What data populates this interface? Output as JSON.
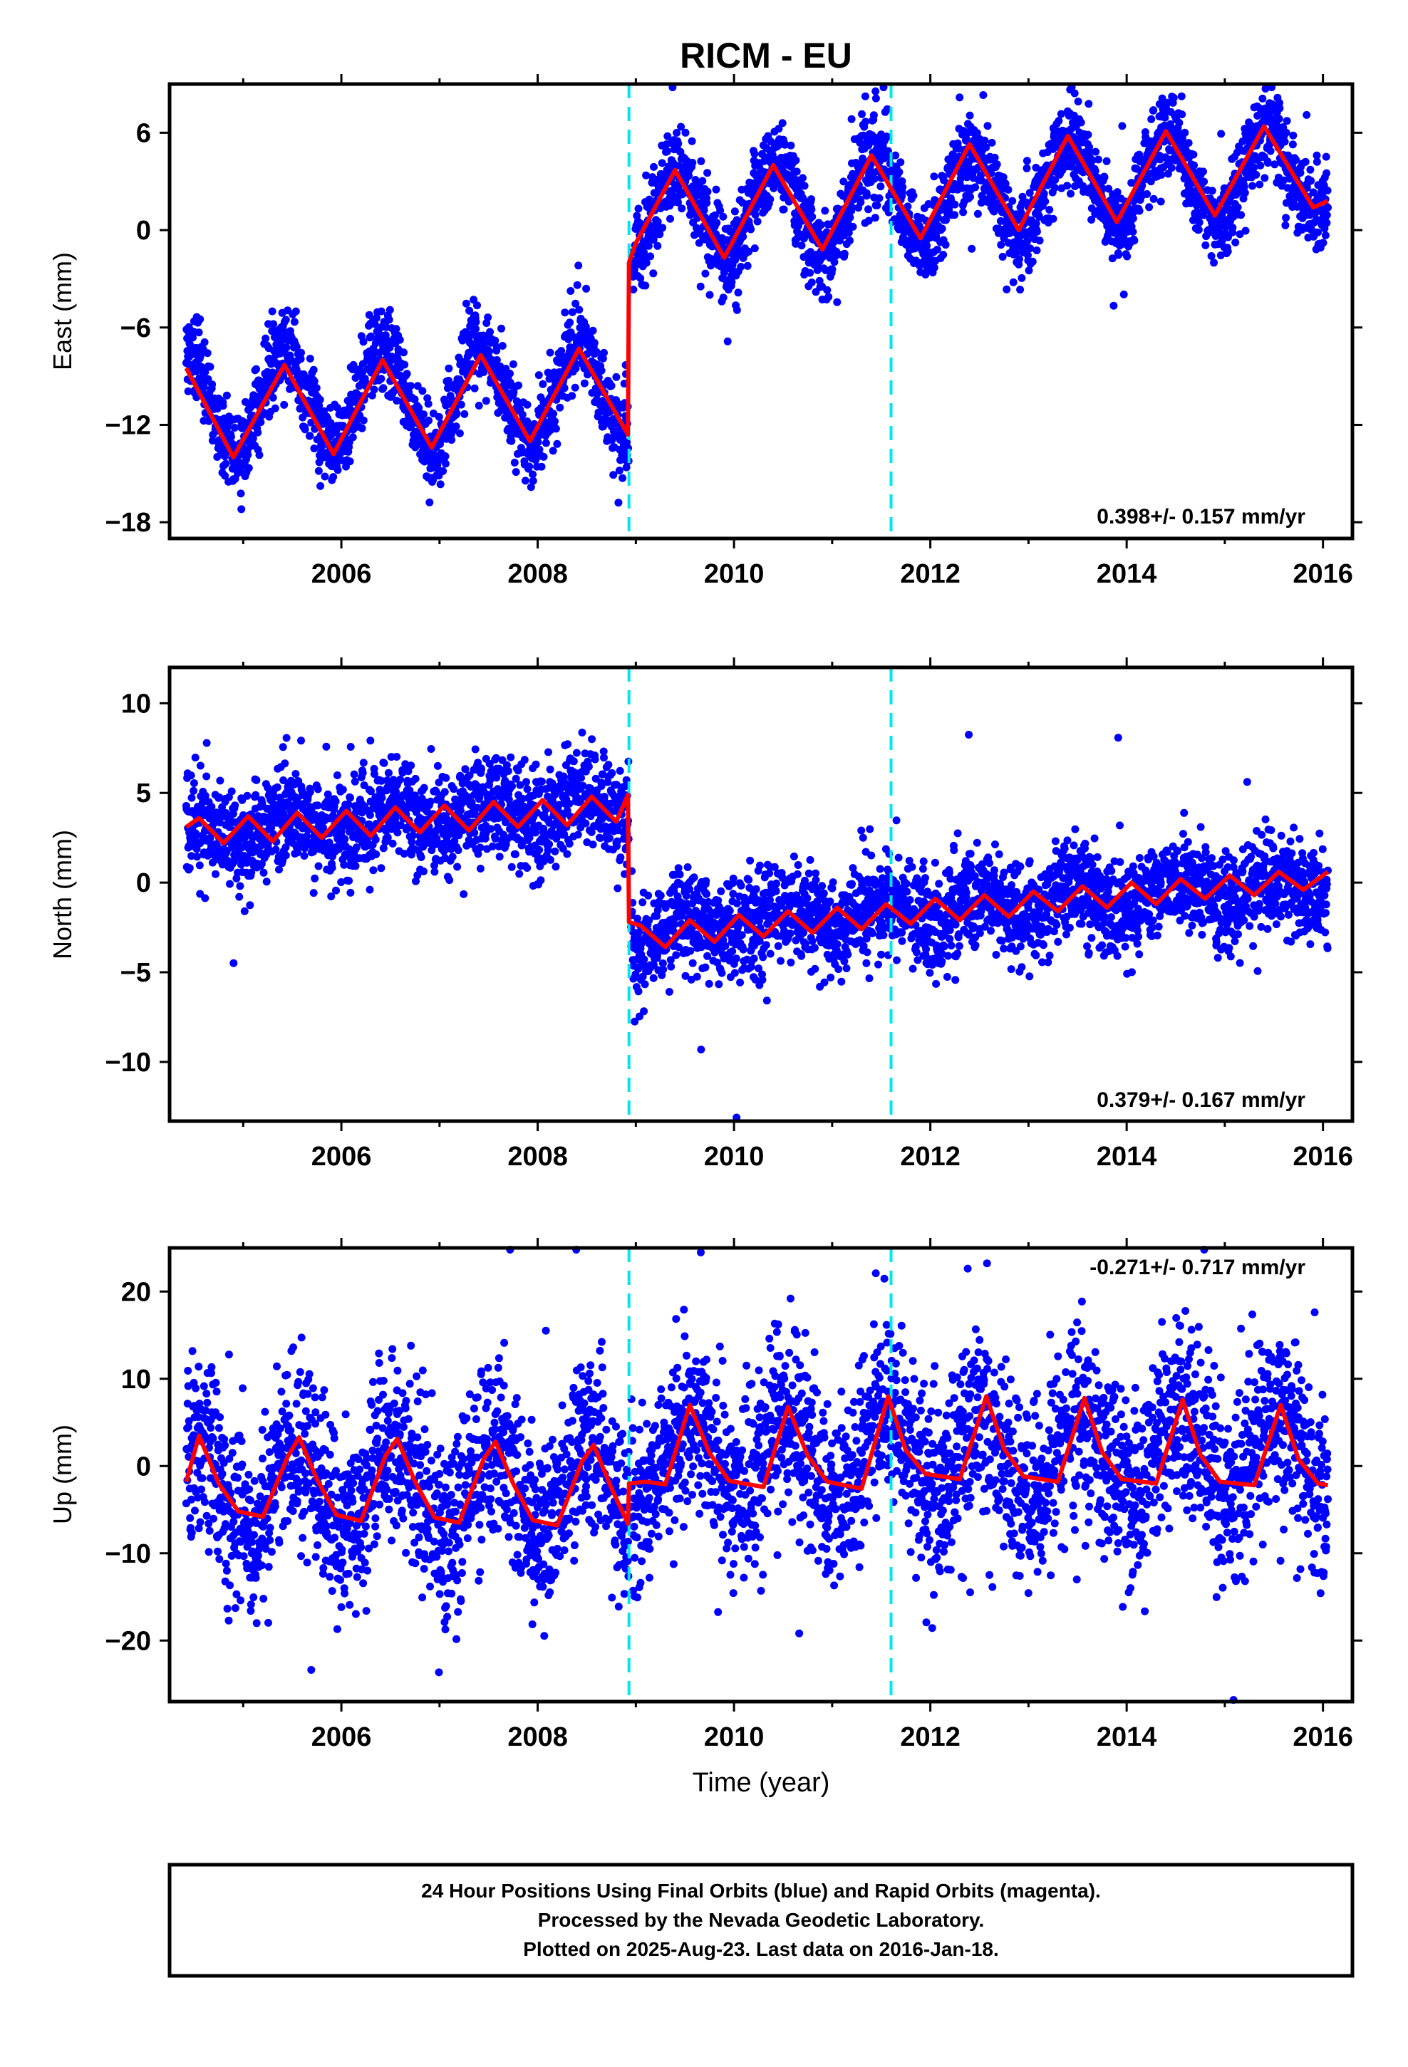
{
  "colors": {
    "points": "#0000ff",
    "model": "#ff0000",
    "offset_line": "#00e5ee",
    "frame": "#000000",
    "background": "#ffffff"
  },
  "chart_data": [
    {
      "type": "scatter",
      "title": "RICM - EU",
      "xlabel": "",
      "ylabel": "East (mm)",
      "xlim": [
        2004.25,
        2016.3
      ],
      "ylim": [
        -19,
        9
      ],
      "x_ticks": [
        2006,
        2008,
        2010,
        2012,
        2014,
        2016
      ],
      "x_tick_labels": [
        "2006",
        "2008",
        "2010",
        "2012",
        "2014",
        "2016"
      ],
      "y_ticks": [
        -18,
        -12,
        -6,
        0,
        6
      ],
      "y_tick_labels": [
        "−18",
        "−12",
        "−6",
        "0",
        "6"
      ],
      "offset_epochs": [
        2008.93,
        2011.6
      ],
      "rate_text": "0.398+/- 0.157 mm/yr",
      "rate_text_position": "bottom-right",
      "series": [
        {
          "role": "daily positions (points)",
          "segments": [
            {
              "x_start": 2004.42,
              "x_end": 2008.93,
              "level_start": -10.6,
              "level_end": -10.0,
              "annual_amplitude": 3.0,
              "scatter": 1.3
            },
            {
              "x_start": 2008.95,
              "x_end": 2016.05,
              "level_start": 0.6,
              "level_end": 3.8,
              "annual_amplitude": 2.8,
              "scatter": 1.3
            }
          ],
          "annual_peak_fraction": 0.42
        },
        {
          "role": "model fit (line)",
          "x": [
            2004.42,
            2004.9,
            2005.42,
            2005.92,
            2006.42,
            2006.92,
            2007.42,
            2007.92,
            2008.42,
            2008.92,
            2008.93,
            2009.0,
            2009.4,
            2009.9,
            2010.4,
            2010.9,
            2011.4,
            2011.9,
            2012.4,
            2012.9,
            2013.4,
            2013.9,
            2014.4,
            2014.9,
            2015.4,
            2015.9,
            2016.05
          ],
          "values": [
            -8.5,
            -14.0,
            -8.3,
            -13.8,
            -8.0,
            -13.4,
            -7.7,
            -13.0,
            -7.3,
            -12.6,
            -2.0,
            -0.8,
            3.7,
            -1.7,
            4.0,
            -1.2,
            4.6,
            -0.5,
            5.3,
            0.0,
            5.8,
            0.5,
            6.1,
            0.9,
            6.4,
            1.4,
            1.8
          ]
        }
      ]
    },
    {
      "type": "scatter",
      "title": "",
      "xlabel": "",
      "ylabel": "North (mm)",
      "xlim": [
        2004.25,
        2016.3
      ],
      "ylim": [
        -13.3,
        12
      ],
      "x_ticks": [
        2006,
        2008,
        2010,
        2012,
        2014,
        2016
      ],
      "x_tick_labels": [
        "2006",
        "2008",
        "2010",
        "2012",
        "2014",
        "2016"
      ],
      "y_ticks": [
        -10,
        -5,
        0,
        5,
        10
      ],
      "y_tick_labels": [
        "−10",
        "−5",
        "0",
        "5",
        "10"
      ],
      "offset_epochs": [
        2008.93,
        2011.6
      ],
      "rate_text": "0.379+/- 0.167 mm/yr",
      "rate_text_position": "bottom-right",
      "series": [
        {
          "role": "daily positions (points)",
          "segments": [
            {
              "x_start": 2004.42,
              "x_end": 2008.93,
              "level_start": 2.8,
              "level_end": 4.3,
              "annual_amplitude": 0.7,
              "scatter": 1.4
            },
            {
              "x_start": 2008.95,
              "x_end": 2016.05,
              "level_start": -2.7,
              "level_end": 0.0,
              "annual_amplitude": 0.7,
              "scatter": 1.4
            }
          ],
          "annual_peak_fraction": 0.5
        },
        {
          "role": "model fit (line)",
          "x": [
            2004.42,
            2004.55,
            2004.8,
            2005.05,
            2005.3,
            2005.55,
            2005.8,
            2006.05,
            2006.3,
            2006.55,
            2006.8,
            2007.05,
            2007.3,
            2007.55,
            2007.8,
            2008.05,
            2008.3,
            2008.55,
            2008.8,
            2008.92,
            2008.93,
            2009.05,
            2009.3,
            2009.55,
            2009.8,
            2010.05,
            2010.3,
            2010.55,
            2010.8,
            2011.05,
            2011.3,
            2011.55,
            2011.8,
            2012.05,
            2012.3,
            2012.55,
            2012.8,
            2013.05,
            2013.3,
            2013.55,
            2013.8,
            2014.05,
            2014.3,
            2014.55,
            2014.8,
            2015.05,
            2015.3,
            2015.55,
            2015.8,
            2016.05
          ],
          "values": [
            3.1,
            3.6,
            2.2,
            3.7,
            2.3,
            3.9,
            2.5,
            4.0,
            2.6,
            4.2,
            2.8,
            4.3,
            2.9,
            4.5,
            3.1,
            4.6,
            3.2,
            4.8,
            3.4,
            4.9,
            -2.2,
            -2.4,
            -3.6,
            -2.1,
            -3.3,
            -1.8,
            -3.0,
            -1.6,
            -2.8,
            -1.4,
            -2.6,
            -1.2,
            -2.3,
            -0.9,
            -2.1,
            -0.7,
            -1.9,
            -0.5,
            -1.6,
            -0.2,
            -1.4,
            0.0,
            -1.2,
            0.2,
            -0.9,
            0.4,
            -0.7,
            0.6,
            -0.4,
            0.6
          ]
        }
      ]
    },
    {
      "type": "scatter",
      "title": "",
      "xlabel": "Time (year)",
      "ylabel": "Up (mm)",
      "xlim": [
        2004.25,
        2016.3
      ],
      "ylim": [
        -27,
        25
      ],
      "x_ticks": [
        2006,
        2008,
        2010,
        2012,
        2014,
        2016
      ],
      "x_tick_labels": [
        "2006",
        "2008",
        "2010",
        "2012",
        "2014",
        "2016"
      ],
      "y_ticks": [
        -20,
        -10,
        0,
        10,
        20
      ],
      "y_tick_labels": [
        "−20",
        "−10",
        "0",
        "10",
        "20"
      ],
      "offset_epochs": [
        2008.93,
        2011.6
      ],
      "rate_text": "-0.271+/- 0.717 mm/yr",
      "rate_text_position": "top-right",
      "series": [
        {
          "role": "daily positions (points)",
          "segments": [
            {
              "x_start": 2004.42,
              "x_end": 2008.93,
              "level_start": -2.0,
              "level_end": -2.5,
              "annual_amplitude": 5.0,
              "scatter": 5.2
            },
            {
              "x_start": 2008.95,
              "x_end": 2016.05,
              "level_start": 1.0,
              "level_end": 1.5,
              "annual_amplitude": 4.5,
              "scatter": 5.2
            }
          ],
          "annual_peak_fraction": 0.55
        },
        {
          "role": "model fit (line)",
          "x": [
            2004.42,
            2004.55,
            2004.75,
            2004.95,
            2005.2,
            2005.45,
            2005.57,
            2005.75,
            2005.95,
            2006.2,
            2006.45,
            2006.57,
            2006.75,
            2006.95,
            2007.2,
            2007.45,
            2007.57,
            2007.75,
            2007.95,
            2008.2,
            2008.45,
            2008.57,
            2008.75,
            2008.92,
            2008.93,
            2009.1,
            2009.3,
            2009.55,
            2009.75,
            2009.95,
            2010.3,
            2010.55,
            2010.75,
            2010.95,
            2011.3,
            2011.57,
            2011.75,
            2011.95,
            2012.3,
            2012.57,
            2012.75,
            2012.95,
            2013.3,
            2013.57,
            2013.75,
            2013.95,
            2014.3,
            2014.57,
            2014.75,
            2014.95,
            2015.3,
            2015.57,
            2015.75,
            2015.95,
            2016.05
          ],
          "values": [
            -1.8,
            3.5,
            -2.0,
            -5.2,
            -5.8,
            1.0,
            3.3,
            -1.5,
            -5.6,
            -6.3,
            1.2,
            3.1,
            -1.8,
            -5.9,
            -6.5,
            0.8,
            2.8,
            -2.0,
            -6.2,
            -6.8,
            0.5,
            2.4,
            -2.5,
            -6.6,
            -2.0,
            -1.8,
            -2.1,
            7.0,
            1.5,
            -1.7,
            -2.4,
            6.8,
            1.2,
            -1.8,
            -2.6,
            8.0,
            1.8,
            -0.9,
            -1.5,
            8.0,
            2.0,
            -1.2,
            -1.8,
            7.8,
            1.6,
            -1.5,
            -2.0,
            7.6,
            1.3,
            -1.8,
            -2.2,
            7.0,
            0.8,
            -2.0,
            -2.2
          ]
        }
      ]
    }
  ],
  "footer": {
    "line1": "24 Hour Positions Using Final Orbits (blue) and Rapid Orbits (magenta).",
    "line2": "Processed by the Nevada Geodetic Laboratory.",
    "line3": "Plotted on 2025-Aug-23. Last data on 2016-Jan-18."
  }
}
